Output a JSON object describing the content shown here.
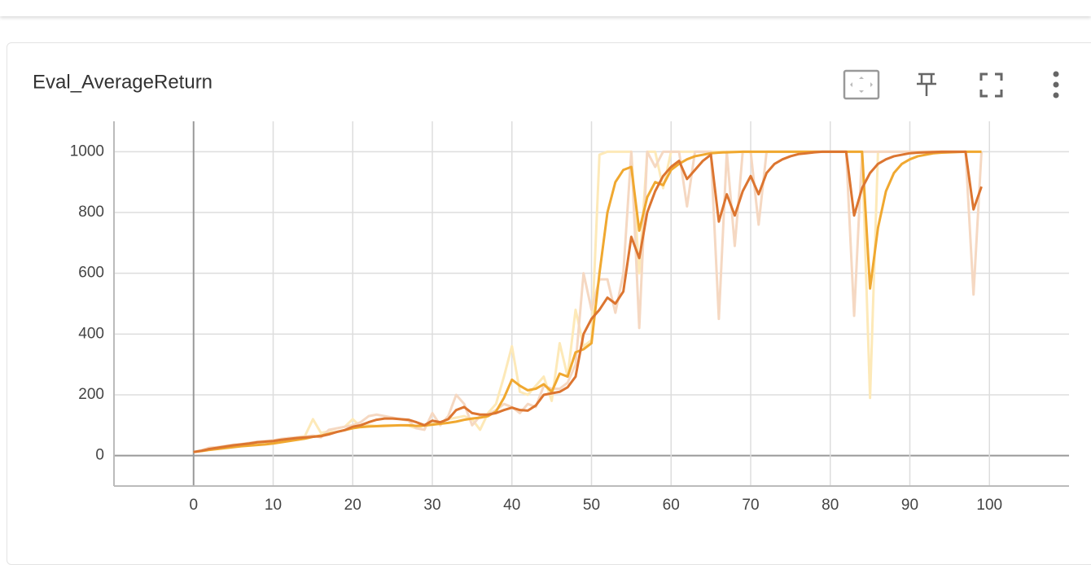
{
  "chart_data": {
    "type": "line",
    "title": "Eval_AverageReturn",
    "x": [
      0,
      1,
      2,
      3,
      4,
      5,
      6,
      7,
      8,
      9,
      10,
      11,
      12,
      13,
      14,
      15,
      16,
      17,
      18,
      19,
      20,
      21,
      22,
      23,
      24,
      25,
      26,
      27,
      28,
      29,
      30,
      31,
      32,
      33,
      34,
      35,
      36,
      37,
      38,
      39,
      40,
      41,
      42,
      43,
      44,
      45,
      46,
      47,
      48,
      49,
      50,
      51,
      52,
      53,
      54,
      55,
      56,
      57,
      58,
      59,
      60,
      61,
      62,
      63,
      64,
      65,
      66,
      67,
      68,
      69,
      70,
      71,
      72,
      73,
      74,
      75,
      76,
      77,
      78,
      79,
      80,
      81,
      82,
      83,
      84,
      85,
      86,
      87,
      88,
      89,
      90,
      91,
      92,
      93,
      94,
      95,
      96,
      97,
      98,
      99
    ],
    "series": [
      {
        "color": "#fde9b8",
        "values": [
          12,
          16,
          22,
          24,
          28,
          30,
          33,
          36,
          36,
          38,
          45,
          50,
          55,
          60,
          65,
          120,
          75,
          80,
          90,
          95,
          120,
          95,
          100,
          98,
          100,
          100,
          100,
          98,
          90,
          100,
          105,
          110,
          120,
          125,
          130,
          120,
          85,
          140,
          170,
          260,
          360,
          210,
          200,
          230,
          260,
          180,
          370,
          260,
          480,
          360,
          380,
          990,
          1000,
          1000,
          1000,
          1000,
          600,
          1000,
          1000,
          880,
          1000,
          1000,
          1000,
          1000,
          1000,
          1000,
          1000,
          1000,
          1000,
          1000,
          1000,
          1000,
          1000,
          1000,
          1000,
          1000,
          1000,
          1000,
          1000,
          1000,
          1000,
          1000,
          1000,
          1000,
          1000,
          190,
          1000,
          1000,
          1000,
          1000,
          1000,
          1000,
          1000,
          1000,
          1000,
          1000,
          1000,
          1000,
          1000,
          1000
        ]
      },
      {
        "color": "#f5d8c2",
        "values": [
          12,
          18,
          26,
          28,
          32,
          36,
          38,
          42,
          46,
          48,
          50,
          55,
          58,
          60,
          62,
          66,
          60,
          85,
          90,
          95,
          100,
          110,
          130,
          135,
          130,
          125,
          120,
          115,
          90,
          85,
          140,
          100,
          130,
          200,
          170,
          100,
          130,
          135,
          150,
          170,
          160,
          140,
          170,
          160,
          230,
          220,
          220,
          240,
          300,
          600,
          480,
          580,
          580,
          470,
          600,
          1000,
          420,
          1000,
          950,
          1000,
          1000,
          1000,
          820,
          1000,
          1000,
          1000,
          450,
          1000,
          690,
          1000,
          1000,
          760,
          1000,
          1000,
          1000,
          1000,
          1000,
          1000,
          1000,
          1000,
          1000,
          1000,
          1000,
          460,
          1000,
          1000,
          1000,
          1000,
          1000,
          1000,
          1000,
          1000,
          1000,
          1000,
          1000,
          1000,
          1000,
          1000,
          530,
          1000
        ]
      },
      {
        "color": "#f0a830",
        "values": [
          12,
          15,
          19,
          22,
          25,
          28,
          31,
          33,
          35,
          37,
          40,
          44,
          48,
          52,
          56,
          62,
          66,
          72,
          78,
          84,
          90,
          94,
          96,
          97,
          98,
          99,
          100,
          100,
          98,
          99,
          102,
          105,
          108,
          112,
          118,
          122,
          125,
          130,
          145,
          190,
          250,
          230,
          215,
          220,
          235,
          210,
          270,
          260,
          340,
          350,
          370,
          600,
          800,
          900,
          940,
          950,
          740,
          850,
          900,
          890,
          940,
          960,
          975,
          985,
          990,
          995,
          997,
          998,
          999,
          1000,
          1000,
          1000,
          1000,
          1000,
          1000,
          1000,
          1000,
          1000,
          1000,
          1000,
          1000,
          1000,
          1000,
          1000,
          1000,
          550,
          750,
          870,
          930,
          960,
          975,
          985,
          990,
          995,
          997,
          998,
          999,
          1000,
          1000,
          1000
        ]
      },
      {
        "color": "#dc7530",
        "values": [
          12,
          16,
          22,
          26,
          30,
          34,
          37,
          40,
          44,
          46,
          48,
          52,
          55,
          58,
          60,
          62,
          64,
          70,
          78,
          84,
          95,
          100,
          110,
          118,
          122,
          122,
          120,
          118,
          110,
          100,
          115,
          110,
          120,
          150,
          160,
          140,
          135,
          135,
          140,
          150,
          158,
          150,
          148,
          165,
          200,
          205,
          210,
          225,
          260,
          400,
          450,
          480,
          520,
          500,
          540,
          720,
          650,
          800,
          870,
          920,
          950,
          970,
          910,
          940,
          970,
          990,
          770,
          860,
          790,
          870,
          920,
          860,
          930,
          960,
          975,
          985,
          992,
          995,
          998,
          1000,
          1000,
          1000,
          1000,
          790,
          880,
          930,
          960,
          975,
          985,
          990,
          995,
          997,
          998,
          999,
          1000,
          1000,
          1000,
          1000,
          810,
          885
        ]
      }
    ],
    "xlim": [
      -10,
      110
    ],
    "xticks": [
      0,
      10,
      20,
      30,
      40,
      50,
      60,
      70,
      80,
      90,
      100
    ],
    "ylim": [
      -100,
      1100
    ],
    "yticks": [
      0,
      200,
      400,
      600,
      800,
      1000
    ],
    "grid": true
  }
}
